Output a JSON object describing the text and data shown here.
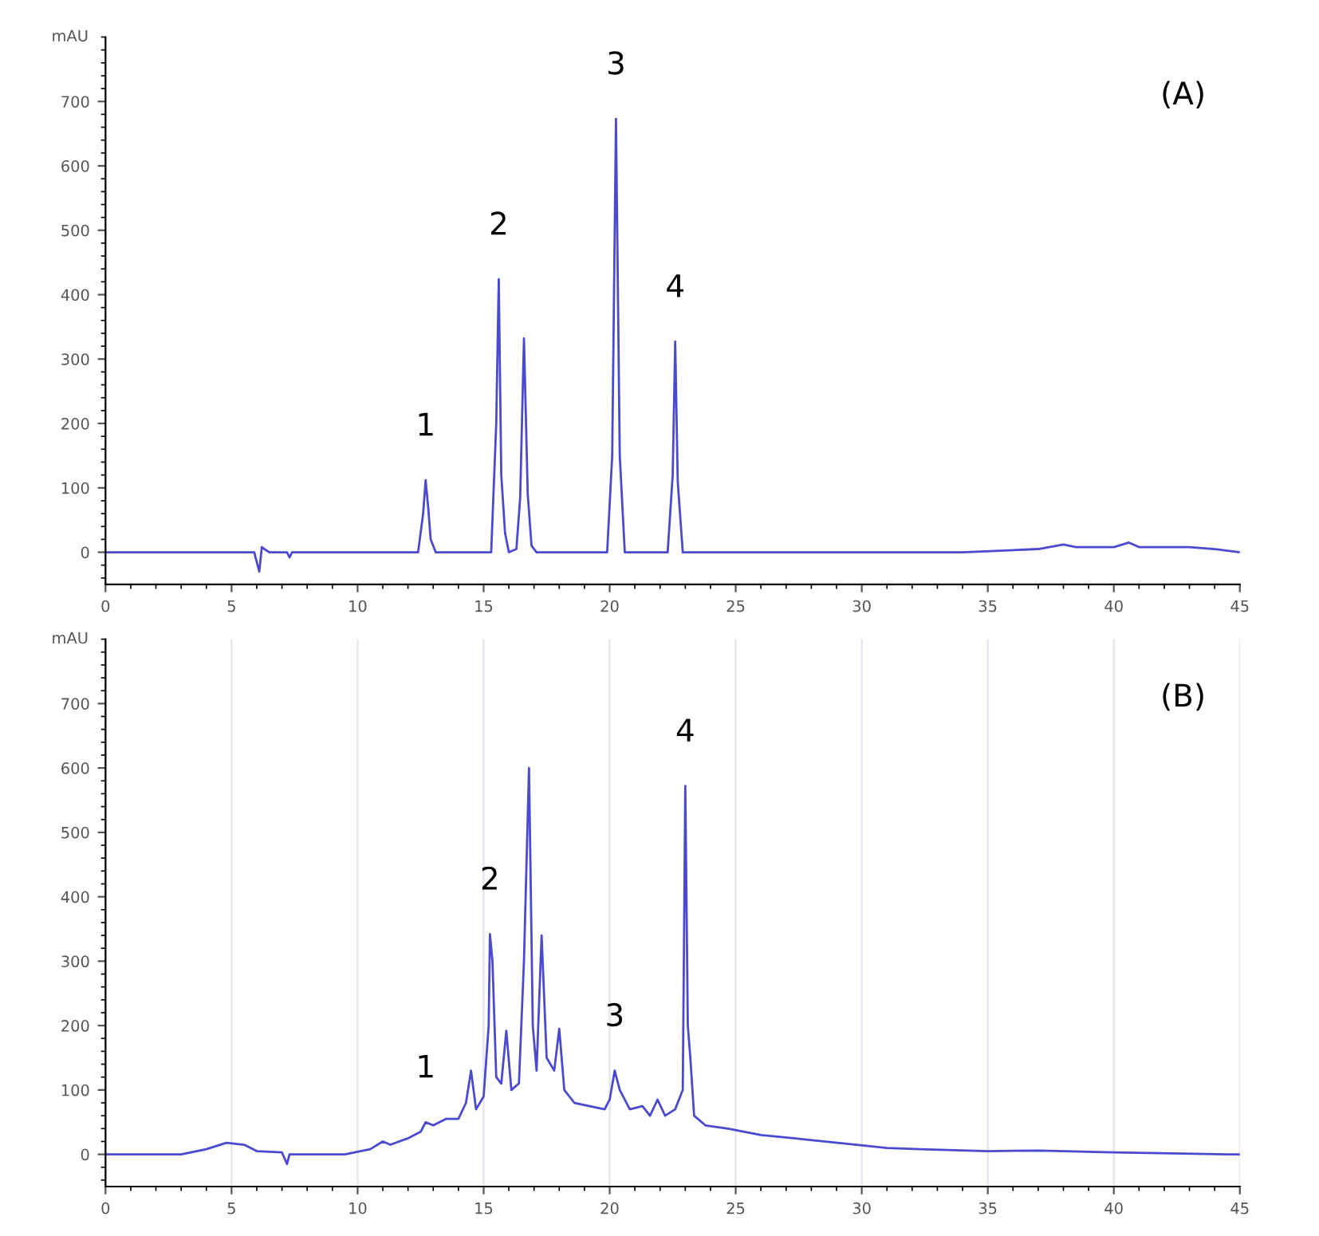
{
  "chart_data": [
    {
      "type": "line",
      "title": "(A)",
      "ylabel": "mAU",
      "xlim": [
        0,
        45
      ],
      "xticks": [
        0,
        5,
        10,
        15,
        20,
        25,
        30,
        35,
        40,
        45
      ],
      "ylim": [
        -50,
        800
      ],
      "yticks": [
        0,
        100,
        200,
        300,
        400,
        500,
        600,
        700
      ],
      "grid": false,
      "marker": "none",
      "line_style": "solid",
      "series": [
        {
          "color": "#4a4ad0",
          "x": [
            0,
            5.9,
            6.1,
            6.2,
            6.3,
            6.5,
            7.2,
            7.3,
            7.4,
            12.4,
            12.6,
            12.7,
            12.8,
            12.9,
            13.1,
            15.3,
            15.5,
            15.6,
            15.7,
            15.85,
            16.0,
            16.3,
            16.45,
            16.6,
            16.75,
            16.9,
            17.1,
            19.9,
            20.1,
            20.25,
            20.4,
            20.6,
            22.3,
            22.5,
            22.6,
            22.7,
            22.9,
            34,
            37,
            38,
            38.5,
            40,
            40.6,
            41,
            43,
            44,
            45
          ],
          "values": [
            0,
            0,
            -30,
            8,
            5,
            0,
            0,
            -8,
            0,
            0,
            60,
            112,
            70,
            20,
            0,
            0,
            200,
            424,
            120,
            30,
            0,
            5,
            85,
            332,
            90,
            10,
            0,
            0,
            150,
            673,
            150,
            0,
            0,
            120,
            327,
            110,
            0,
            0,
            5,
            12,
            8,
            8,
            15,
            8,
            8,
            5,
            0
          ]
        }
      ],
      "annotations": [
        {
          "text": "1",
          "x": 12.7,
          "y": 112
        },
        {
          "text": "2",
          "x": 15.6,
          "y": 424
        },
        {
          "text": "3",
          "x": 20.25,
          "y": 673
        },
        {
          "text": "4",
          "x": 22.6,
          "y": 327
        }
      ]
    },
    {
      "type": "line",
      "title": "(B)",
      "ylabel": "mAU",
      "xlim": [
        0,
        45
      ],
      "xticks": [
        0,
        5,
        10,
        15,
        20,
        25,
        30,
        35,
        40,
        45
      ],
      "ylim": [
        -50,
        800
      ],
      "yticks": [
        0,
        100,
        200,
        300,
        400,
        500,
        600,
        700
      ],
      "grid": "x",
      "marker": "none",
      "line_style": "solid",
      "series": [
        {
          "color": "#4a4ad0",
          "x": [
            0,
            3,
            4,
            4.8,
            5.5,
            6,
            7,
            7.2,
            7.3,
            9.5,
            10.5,
            11,
            11.3,
            12,
            12.5,
            12.7,
            13,
            13.5,
            14,
            14.3,
            14.5,
            14.7,
            15,
            15.2,
            15.25,
            15.35,
            15.5,
            15.7,
            15.9,
            16.1,
            16.4,
            16.6,
            16.8,
            16.95,
            17.1,
            17.3,
            17.5,
            17.8,
            18.0,
            18.2,
            18.6,
            19.2,
            19.8,
            20.0,
            20.2,
            20.4,
            20.8,
            21.3,
            21.6,
            21.9,
            22.2,
            22.6,
            22.9,
            23.0,
            23.1,
            23.2,
            23.35,
            23.8,
            24.7,
            26,
            27.3,
            28.5,
            29.8,
            31,
            32.3,
            35,
            37,
            40,
            44.4,
            45
          ],
          "values": [
            0,
            0,
            8,
            18,
            15,
            5,
            3,
            -15,
            0,
            0,
            8,
            20,
            15,
            25,
            35,
            50,
            45,
            55,
            55,
            80,
            130,
            70,
            90,
            200,
            342,
            300,
            120,
            110,
            192,
            100,
            110,
            300,
            600,
            200,
            130,
            340,
            150,
            130,
            195,
            100,
            80,
            75,
            70,
            85,
            130,
            100,
            70,
            75,
            60,
            85,
            60,
            70,
            100,
            572,
            200,
            150,
            60,
            45,
            40,
            30,
            25,
            20,
            15,
            10,
            8,
            5,
            6,
            3,
            0,
            0
          ]
        }
      ],
      "annotations": [
        {
          "text": "1",
          "x": 12.7,
          "y": 50
        },
        {
          "text": "2",
          "x": 15.25,
          "y": 342
        },
        {
          "text": "3",
          "x": 20.2,
          "y": 130
        },
        {
          "text": "4",
          "x": 23.0,
          "y": 572
        }
      ]
    }
  ]
}
